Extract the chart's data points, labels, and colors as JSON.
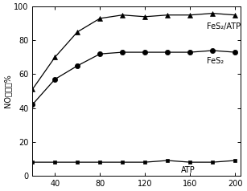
{
  "x": [
    20,
    40,
    60,
    80,
    100,
    120,
    140,
    160,
    180,
    200
  ],
  "fes2_atp": [
    51,
    70,
    85,
    93,
    95,
    94,
    95,
    95,
    96,
    95
  ],
  "fes2": [
    42,
    57,
    65,
    72,
    73,
    73,
    73,
    73,
    74,
    73
  ],
  "atp": [
    8,
    8,
    8,
    8,
    8,
    8,
    9,
    8,
    8,
    9
  ],
  "ylabel": "NO转化率%",
  "label_fes2_atp": "FeS₂/ATP",
  "label_fes2": "FeS₂",
  "label_atp": "ATP",
  "xlim": [
    20,
    205
  ],
  "ylim": [
    0,
    100
  ],
  "xticks": [
    40,
    80,
    120,
    160,
    200
  ],
  "yticks": [
    0,
    20,
    40,
    60,
    80,
    100
  ],
  "line_color": "#000000",
  "background_color": "#ffffff",
  "label_fontsize": 7,
  "tick_fontsize": 7,
  "ylabel_fontsize": 7
}
